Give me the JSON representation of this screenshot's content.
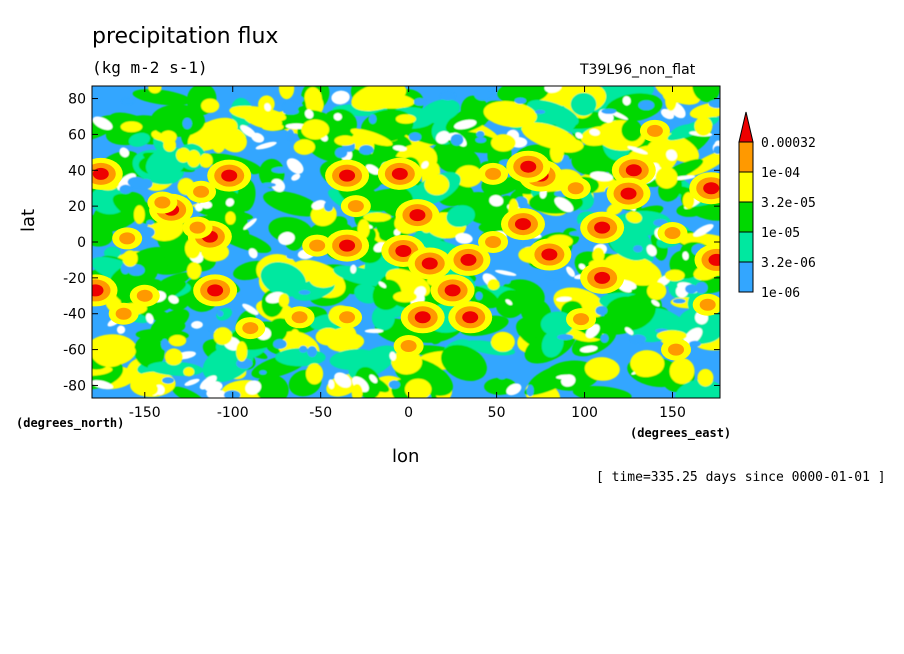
{
  "chart_data": {
    "type": "heatmap",
    "title": "precipitation flux",
    "units": "(kg m-2 s-1)",
    "run_label": "T39L96_non_flat",
    "xlabel": "lon",
    "ylabel": "lat",
    "x_units": "(degrees_east)",
    "y_units": "(degrees_north)",
    "time_label": "[ time=335.25 days since 0000-01-01 ]",
    "xlim": [
      -180,
      177
    ],
    "ylim": [
      -87,
      87
    ],
    "x_ticks": [
      -150,
      -100,
      -50,
      0,
      50,
      100,
      150
    ],
    "y_ticks": [
      80,
      60,
      40,
      20,
      0,
      -20,
      -40,
      -60,
      -80
    ],
    "legend": {
      "levels": [
        {
          "label": "1e-06",
          "color": "#33a6ff"
        },
        {
          "label": "3.2e-06",
          "color": "#00e8a0"
        },
        {
          "label": "1e-05",
          "color": "#00d800"
        },
        {
          "label": "3.2e-05",
          "color": "#ffff00"
        },
        {
          "label": "1e-04",
          "color": "#ff9900"
        },
        {
          "label": "0.00032",
          "color": "#ee0000"
        }
      ],
      "below_color": "#ffffff",
      "placement": "right"
    },
    "background_color": "#33a6ff",
    "cells": [
      {
        "lon": -135,
        "lat": 18,
        "level": 5
      },
      {
        "lon": -113,
        "lat": 3,
        "level": 5
      },
      {
        "lon": -140,
        "lat": 22,
        "level": 4
      },
      {
        "lon": -120,
        "lat": 8,
        "level": 4
      },
      {
        "lon": -175,
        "lat": 38,
        "level": 5
      },
      {
        "lon": -178,
        "lat": -27,
        "level": 5
      },
      {
        "lon": -102,
        "lat": 37,
        "level": 5
      },
      {
        "lon": -110,
        "lat": -27,
        "level": 5
      },
      {
        "lon": -35,
        "lat": 37,
        "level": 5
      },
      {
        "lon": -35,
        "lat": -2,
        "level": 5
      },
      {
        "lon": -30,
        "lat": 20,
        "level": 4
      },
      {
        "lon": -52,
        "lat": -2,
        "level": 4
      },
      {
        "lon": -62,
        "lat": -42,
        "level": 4
      },
      {
        "lon": -35,
        "lat": -42,
        "level": 4
      },
      {
        "lon": -5,
        "lat": 38,
        "level": 5
      },
      {
        "lon": -3,
        "lat": -5,
        "level": 5
      },
      {
        "lon": 12,
        "lat": -12,
        "level": 5
      },
      {
        "lon": 34,
        "lat": -10,
        "level": 5
      },
      {
        "lon": 25,
        "lat": -27,
        "level": 5
      },
      {
        "lon": 35,
        "lat": -42,
        "level": 5
      },
      {
        "lon": 48,
        "lat": 38,
        "level": 4
      },
      {
        "lon": 65,
        "lat": 10,
        "level": 5
      },
      {
        "lon": 48,
        "lat": 0,
        "level": 4
      },
      {
        "lon": 75,
        "lat": 37,
        "level": 5
      },
      {
        "lon": 68,
        "lat": 42,
        "level": 5
      },
      {
        "lon": 80,
        "lat": -7,
        "level": 5
      },
      {
        "lon": 110,
        "lat": 8,
        "level": 5
      },
      {
        "lon": 110,
        "lat": -20,
        "level": 5
      },
      {
        "lon": 128,
        "lat": 40,
        "level": 5
      },
      {
        "lon": 125,
        "lat": 27,
        "level": 5
      },
      {
        "lon": 172,
        "lat": 30,
        "level": 5
      },
      {
        "lon": 175,
        "lat": -10,
        "level": 5
      },
      {
        "lon": 170,
        "lat": -35,
        "level": 4
      },
      {
        "lon": 5,
        "lat": 15,
        "level": 5
      },
      {
        "lon": 8,
        "lat": -42,
        "level": 5
      },
      {
        "lon": -162,
        "lat": -40,
        "level": 4
      },
      {
        "lon": -150,
        "lat": -30,
        "level": 4
      },
      {
        "lon": -118,
        "lat": 28,
        "level": 4
      },
      {
        "lon": 95,
        "lat": 30,
        "level": 4
      },
      {
        "lon": 150,
        "lat": 5,
        "level": 4
      },
      {
        "lon": 140,
        "lat": 62,
        "level": 4
      },
      {
        "lon": -160,
        "lat": 2,
        "level": 4
      },
      {
        "lon": 98,
        "lat": -43,
        "level": 4
      },
      {
        "lon": 152,
        "lat": -60,
        "level": 4
      },
      {
        "lon": -90,
        "lat": -48,
        "level": 4
      },
      {
        "lon": 0,
        "lat": -58,
        "level": 4
      }
    ]
  }
}
